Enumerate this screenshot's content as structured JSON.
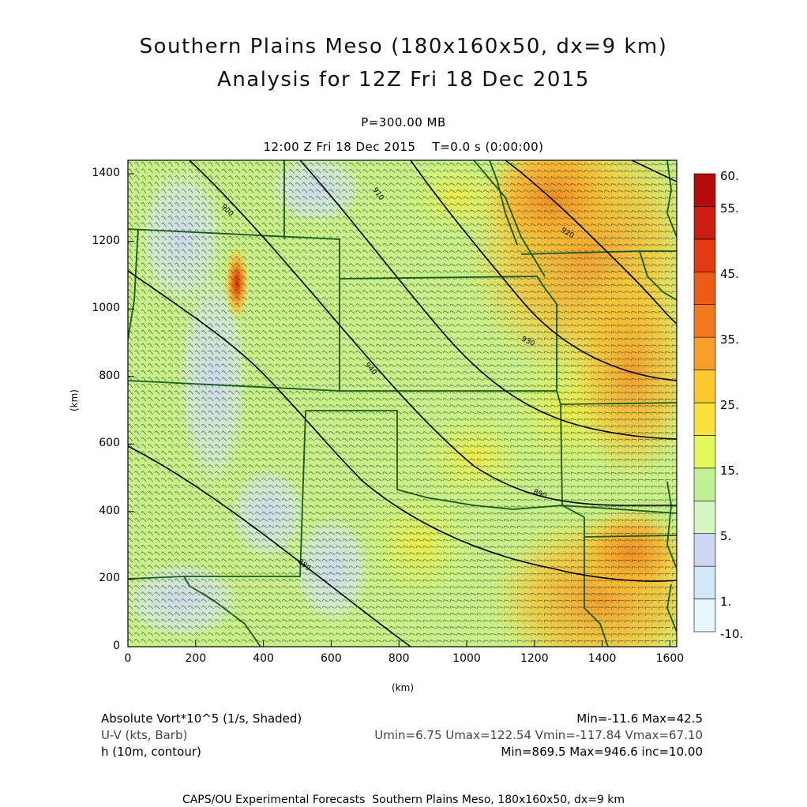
{
  "title_line1": "Southern Plains Meso (180x160x50, dx=9 km)",
  "title_line2": "Analysis for 12Z Fri 18 Dec 2015",
  "level": "P=300.00 MB",
  "valid_time": "12:00 Z Fri 18 Dec 2015    T=0.0 s (0:00:00)",
  "axes": {
    "x_unit": "(km)",
    "y_unit": "(km)",
    "x_ticks": [
      "0",
      "200",
      "400",
      "600",
      "800",
      "1000",
      "1200",
      "1400",
      "1600"
    ],
    "y_ticks": [
      "0",
      "200",
      "400",
      "600",
      "800",
      "1000",
      "1200",
      "1400"
    ],
    "x_range_km": [
      0,
      1620
    ],
    "y_range_km": [
      0,
      1440
    ]
  },
  "colorbar": {
    "labels": [
      "60.",
      "55.",
      "45.",
      "35.",
      "25.",
      "15.",
      "5.",
      "1.",
      "-10."
    ],
    "colors": [
      "#e8f6fc",
      "#d2e8f7",
      "#cdd6f2",
      "#d6f5c4",
      "#c2ef96",
      "#e2f85a",
      "#fae23a",
      "#fcca2e",
      "#fa9e2a",
      "#f27a1e",
      "#ec5c16",
      "#e23a12",
      "#cc1e10",
      "#b40c0a"
    ]
  },
  "field_legend": {
    "shaded": "Absolute Vort*10^5 (1/s, Shaded)",
    "shaded_stats": "Min=-11.6 Max=42.5",
    "barb": "U-V (kts, Barb)",
    "barb_stats": "Umin=6.75 Umax=122.54 Vmin=-117.84 Vmax=67.10",
    "contour": "h (10m, contour)",
    "contour_stats": "Min=869.5 Max=946.6 inc=10.00"
  },
  "contour_labels": [
    "900",
    "910",
    "920",
    "930",
    "940",
    "890",
    "880"
  ],
  "footer": "CAPS/OU Experimental Forecasts  Southern Plains Meso, 180x160x50, dx=9 km",
  "colors": {
    "border": "#1a5a1a",
    "contour": "#000000",
    "barb": "#1a3a1a"
  }
}
